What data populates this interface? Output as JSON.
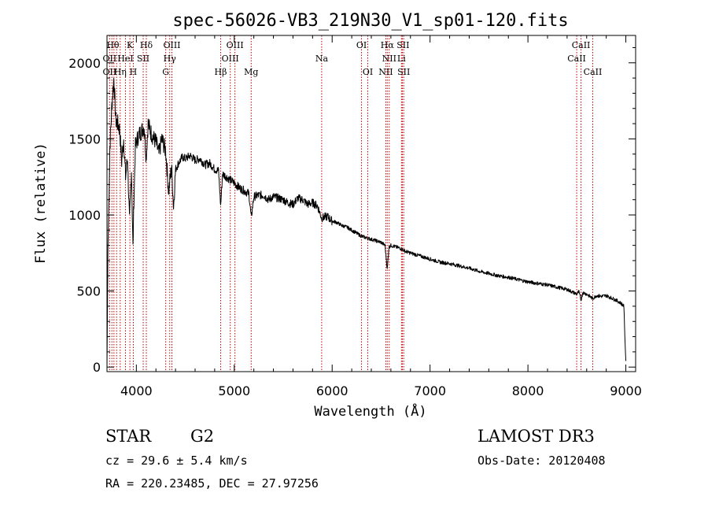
{
  "chart_data": {
    "type": "line",
    "title": "spec-56026-VB3_219N30_V1_sp01-120.fits",
    "xlabel": "Wavelength (Å)",
    "ylabel": "Flux (relative)",
    "xlim": [
      3700,
      9100
    ],
    "ylim": [
      -30,
      2180
    ],
    "xticks": [
      4000,
      5000,
      6000,
      7000,
      8000,
      9000
    ],
    "yticks": [
      0,
      500,
      1000,
      1500,
      2000
    ],
    "series": [
      {
        "name": "flux",
        "x": [
          3700,
          3710,
          3730,
          3750,
          3770,
          3790,
          3810,
          3830,
          3850,
          3870,
          3890,
          3910,
          3930,
          3950,
          3965,
          3975,
          3990,
          4020,
          4050,
          4080,
          4100,
          4120,
          4150,
          4180,
          4200,
          4230,
          4260,
          4300,
          4330,
          4360,
          4380,
          4400,
          4430,
          4470,
          4500,
          4550,
          4600,
          4650,
          4700,
          4750,
          4800,
          4840,
          4861,
          4880,
          4920,
          4960,
          5000,
          5050,
          5100,
          5150,
          5173,
          5200,
          5250,
          5300,
          5350,
          5400,
          5450,
          5500,
          5550,
          5600,
          5650,
          5700,
          5750,
          5800,
          5850,
          5893,
          5950,
          6000,
          6050,
          6100,
          6150,
          6200,
          6250,
          6300,
          6350,
          6400,
          6450,
          6500,
          6540,
          6563,
          6580,
          6600,
          6650,
          6700,
          6750,
          6800,
          6900,
          7000,
          7100,
          7200,
          7300,
          7400,
          7500,
          7600,
          7700,
          7800,
          7900,
          8000,
          8100,
          8200,
          8300,
          8400,
          8498,
          8520,
          8542,
          8560,
          8600,
          8662,
          8700,
          8750,
          8800,
          8850,
          8900,
          8950,
          8980,
          8990,
          9000
        ],
        "values": [
          0,
          780,
          1450,
          1720,
          1900,
          1620,
          1600,
          1560,
          1350,
          1500,
          1250,
          1380,
          950,
          1300,
          780,
          1100,
          1450,
          1520,
          1550,
          1580,
          1380,
          1600,
          1540,
          1500,
          1480,
          1400,
          1500,
          1420,
          1150,
          1320,
          1050,
          1300,
          1340,
          1380,
          1370,
          1390,
          1360,
          1370,
          1330,
          1340,
          1300,
          1290,
          1060,
          1270,
          1250,
          1230,
          1210,
          1180,
          1160,
          1140,
          980,
          1120,
          1130,
          1130,
          1100,
          1120,
          1110,
          1100,
          1080,
          1070,
          1110,
          1100,
          1070,
          1080,
          1060,
          980,
          990,
          960,
          950,
          930,
          920,
          900,
          880,
          860,
          850,
          840,
          830,
          820,
          800,
          640,
          790,
          800,
          790,
          780,
          760,
          750,
          730,
          710,
          690,
          680,
          665,
          650,
          630,
          615,
          600,
          590,
          575,
          560,
          550,
          540,
          525,
          510,
          480,
          495,
          440,
          490,
          480,
          450,
          470,
          465,
          470,
          455,
          440,
          420,
          400,
          200,
          40
        ]
      }
    ],
    "spectral_lines": {
      "wavelengths": [
        3727,
        3750,
        3771,
        3798,
        3835,
        3889,
        3934,
        3969,
        4070,
        4102,
        4300,
        4341,
        4363,
        4861,
        4959,
        5007,
        5173,
        5893,
        6300,
        6364,
        6548,
        6563,
        6583,
        6708,
        6717,
        6731,
        8498,
        8542,
        8662
      ],
      "labels": [
        {
          "text": "Hθ",
          "row": 1,
          "x": 3760
        },
        {
          "text": "K",
          "row": 1,
          "x": 3934
        },
        {
          "text": "Hδ",
          "row": 1,
          "x": 4102
        },
        {
          "text": "OIII",
          "row": 1,
          "x": 4363
        },
        {
          "text": "OIII",
          "row": 1,
          "x": 5007
        },
        {
          "text": "OI",
          "row": 1,
          "x": 6300
        },
        {
          "text": "Hα",
          "row": 1,
          "x": 6563
        },
        {
          "text": "SII",
          "row": 1,
          "x": 6724
        },
        {
          "text": "CaII",
          "row": 1,
          "x": 8542
        },
        {
          "text": "OII",
          "row": 2,
          "x": 3727
        },
        {
          "text": "HeI",
          "row": 2,
          "x": 3889
        },
        {
          "text": "SII",
          "row": 2,
          "x": 4070
        },
        {
          "text": "Hγ",
          "row": 2,
          "x": 4341
        },
        {
          "text": "OIII",
          "row": 2,
          "x": 4959
        },
        {
          "text": "Na",
          "row": 2,
          "x": 5893
        },
        {
          "text": "NII",
          "row": 2,
          "x": 6583
        },
        {
          "text": "Li",
          "row": 2,
          "x": 6708
        },
        {
          "text": "CaII",
          "row": 2,
          "x": 8498
        },
        {
          "text": "OII",
          "row": 3,
          "x": 3727
        },
        {
          "text": "Hη",
          "row": 3,
          "x": 3835
        },
        {
          "text": "H",
          "row": 3,
          "x": 3969
        },
        {
          "text": "G",
          "row": 3,
          "x": 4300
        },
        {
          "text": "Hβ",
          "row": 3,
          "x": 4861
        },
        {
          "text": "Mg",
          "row": 3,
          "x": 5173
        },
        {
          "text": "OI",
          "row": 3,
          "x": 6364
        },
        {
          "text": "NII",
          "row": 3,
          "x": 6548
        },
        {
          "text": "SII",
          "row": 3,
          "x": 6731
        },
        {
          "text": "CaII",
          "row": 3,
          "x": 8662
        }
      ]
    }
  },
  "info": {
    "class": "STAR",
    "subclass": "G2",
    "survey": "LAMOST DR3",
    "cz": "cz = 29.6 ± 5.4 km/s",
    "obs_date": "Obs-Date: 20120408",
    "radec": "RA = 220.23485, DEC =  27.97256"
  },
  "colors": {
    "spectrum": "#000000",
    "line_markers": "#c00000",
    "axes": "#000000"
  }
}
